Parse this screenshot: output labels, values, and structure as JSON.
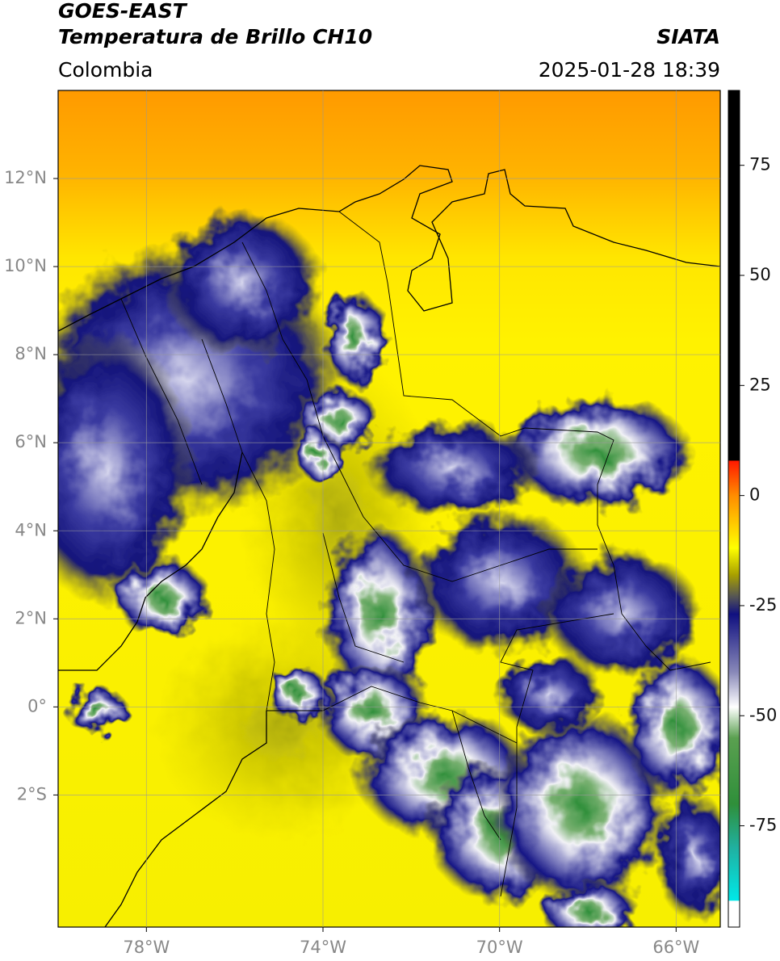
{
  "header": {
    "line1": "GOES-EAST",
    "line2": "Temperatura de Brillo CH10",
    "region": "Colombia",
    "source": "SIATA",
    "datetime": "2025-01-28 18:39"
  },
  "map": {
    "xlim": [
      -80,
      -65
    ],
    "ylim": [
      -5,
      14
    ],
    "xticks": [
      {
        "value": -78,
        "label": "78°W"
      },
      {
        "value": -74,
        "label": "74°W"
      },
      {
        "value": -70,
        "label": "70°W"
      },
      {
        "value": -66,
        "label": "66°W"
      }
    ],
    "yticks": [
      {
        "value": 12,
        "label": "12°N"
      },
      {
        "value": 10,
        "label": "10°N"
      },
      {
        "value": 8,
        "label": "8°N"
      },
      {
        "value": 6,
        "label": "6°N"
      },
      {
        "value": 4,
        "label": "4°N"
      },
      {
        "value": 2,
        "label": "2°N"
      },
      {
        "value": 0,
        "label": "0°"
      },
      {
        "value": -2,
        "label": "2°S"
      }
    ],
    "grid": true
  },
  "colorbar": {
    "lim": [
      -98,
      92
    ],
    "ticks": [
      75,
      50,
      25,
      0,
      -25,
      -50,
      -75
    ]
  }
}
